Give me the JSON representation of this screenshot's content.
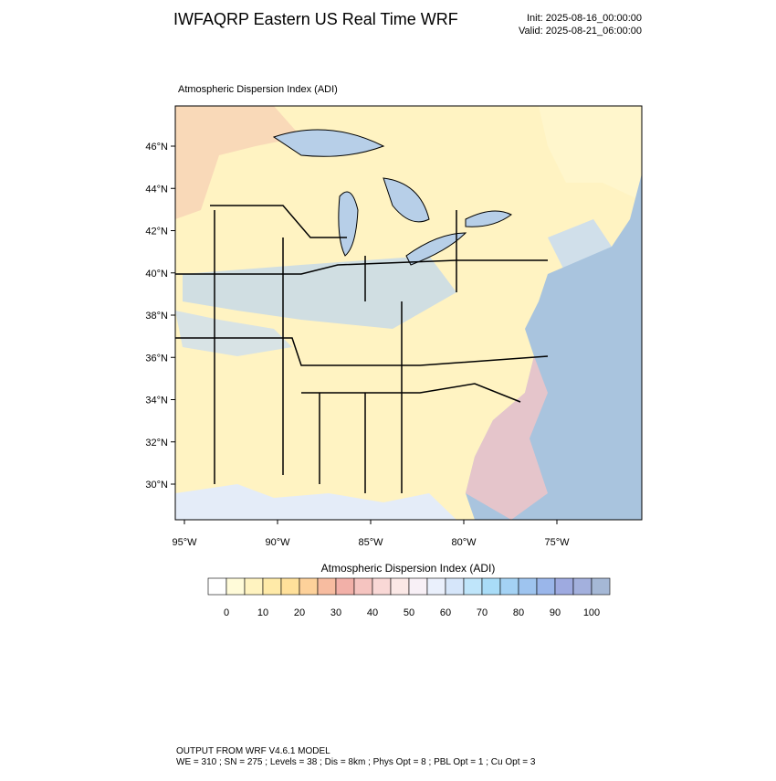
{
  "header": {
    "title": "IWFAQRP Eastern US Real Time WRF",
    "init": "Init: 2025-08-16_00:00:00",
    "valid": "Valid: 2025-08-21_06:00:00"
  },
  "map": {
    "subtitle": "Atmospheric Dispersion Index   (ADI)",
    "lat_labels": [
      "46°N",
      "44°N",
      "42°N",
      "40°N",
      "38°N",
      "36°N",
      "34°N",
      "32°N",
      "30°N"
    ],
    "lon_labels": [
      "95°W",
      "90°W",
      "85°W",
      "80°W",
      "75°W"
    ]
  },
  "colorbar": {
    "title": "Atmospheric Dispersion Index  (ADI)",
    "ticks": [
      0,
      10,
      20,
      30,
      40,
      50,
      60,
      70,
      80,
      90,
      100
    ],
    "colors": [
      "#ffffff",
      "#fffbd9",
      "#fff3c0",
      "#ffeaa8",
      "#ffe09a",
      "#fdd19a",
      "#f7bca0",
      "#f2b0a8",
      "#f5c4c0",
      "#f9d8d6",
      "#fbe8e6",
      "#f8f0f6",
      "#eaf0fc",
      "#d6e6fa",
      "#bfe5fa",
      "#a9dcf7",
      "#a4d2f4",
      "#9ec4ef",
      "#9ab6ea",
      "#9eaae0",
      "#a3b0dd",
      "#a5b8d6"
    ]
  },
  "footer": {
    "line1": "OUTPUT FROM WRF V4.6.1 MODEL",
    "line2": "WE = 310 ; SN = 275 ; Levels = 38 ; Dis = 8km ; Phys Opt = 8 ; PBL Opt = 1 ; Cu Opt = 3"
  }
}
